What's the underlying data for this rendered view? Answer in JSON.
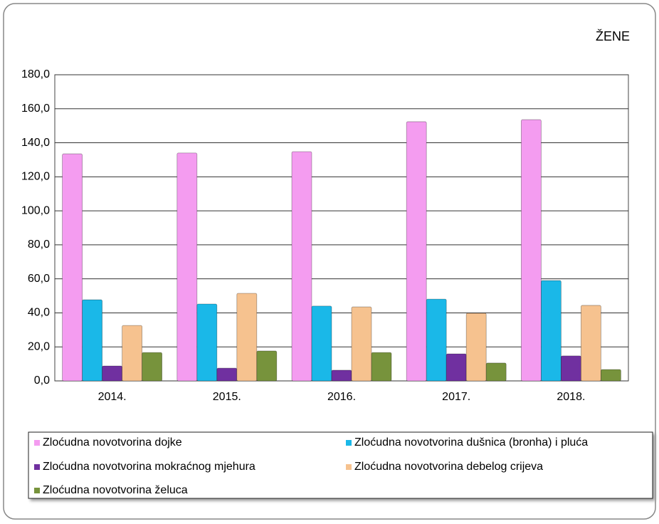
{
  "chart_data": {
    "type": "bar",
    "title": "ŽENE",
    "categories": [
      "2014.",
      "2015.",
      "2016.",
      "2017.",
      "2018."
    ],
    "series": [
      {
        "name": "Zloćudna novotvorina dojke",
        "color": "#f49cf0",
        "values": [
          133.5,
          134.0,
          134.8,
          152.4,
          153.6
        ]
      },
      {
        "name": "Zloćudna novotvorina dušnica (bronha) i pluća",
        "color": "#1ab8e8",
        "values": [
          47.7,
          45.2,
          44.0,
          48.1,
          59.0
        ]
      },
      {
        "name": "Zloćudna novotvorina mokraćnog mjehura",
        "color": "#7030a0",
        "values": [
          8.8,
          7.5,
          6.3,
          15.9,
          14.7
        ]
      },
      {
        "name": "Zloćudna novotvorina debelog crijeva",
        "color": "#f6c28f",
        "values": [
          32.6,
          51.5,
          43.5,
          39.8,
          44.4
        ]
      },
      {
        "name": "Zloćudna novotvorina želuca",
        "color": "#77933c",
        "values": [
          16.7,
          17.6,
          16.7,
          10.5,
          6.7
        ]
      }
    ],
    "ylim": [
      0,
      180
    ],
    "yticks": [
      {
        "value": 0,
        "label": "0,0"
      },
      {
        "value": 20,
        "label": "20,0"
      },
      {
        "value": 40,
        "label": "40,0"
      },
      {
        "value": 60,
        "label": "60,0"
      },
      {
        "value": 80,
        "label": "80,0"
      },
      {
        "value": 100,
        "label": "100,0"
      },
      {
        "value": 120,
        "label": "120,0"
      },
      {
        "value": 140,
        "label": "140,0"
      },
      {
        "value": 160,
        "label": "160,0"
      },
      {
        "value": 180,
        "label": "180,0"
      }
    ],
    "grid": true
  }
}
